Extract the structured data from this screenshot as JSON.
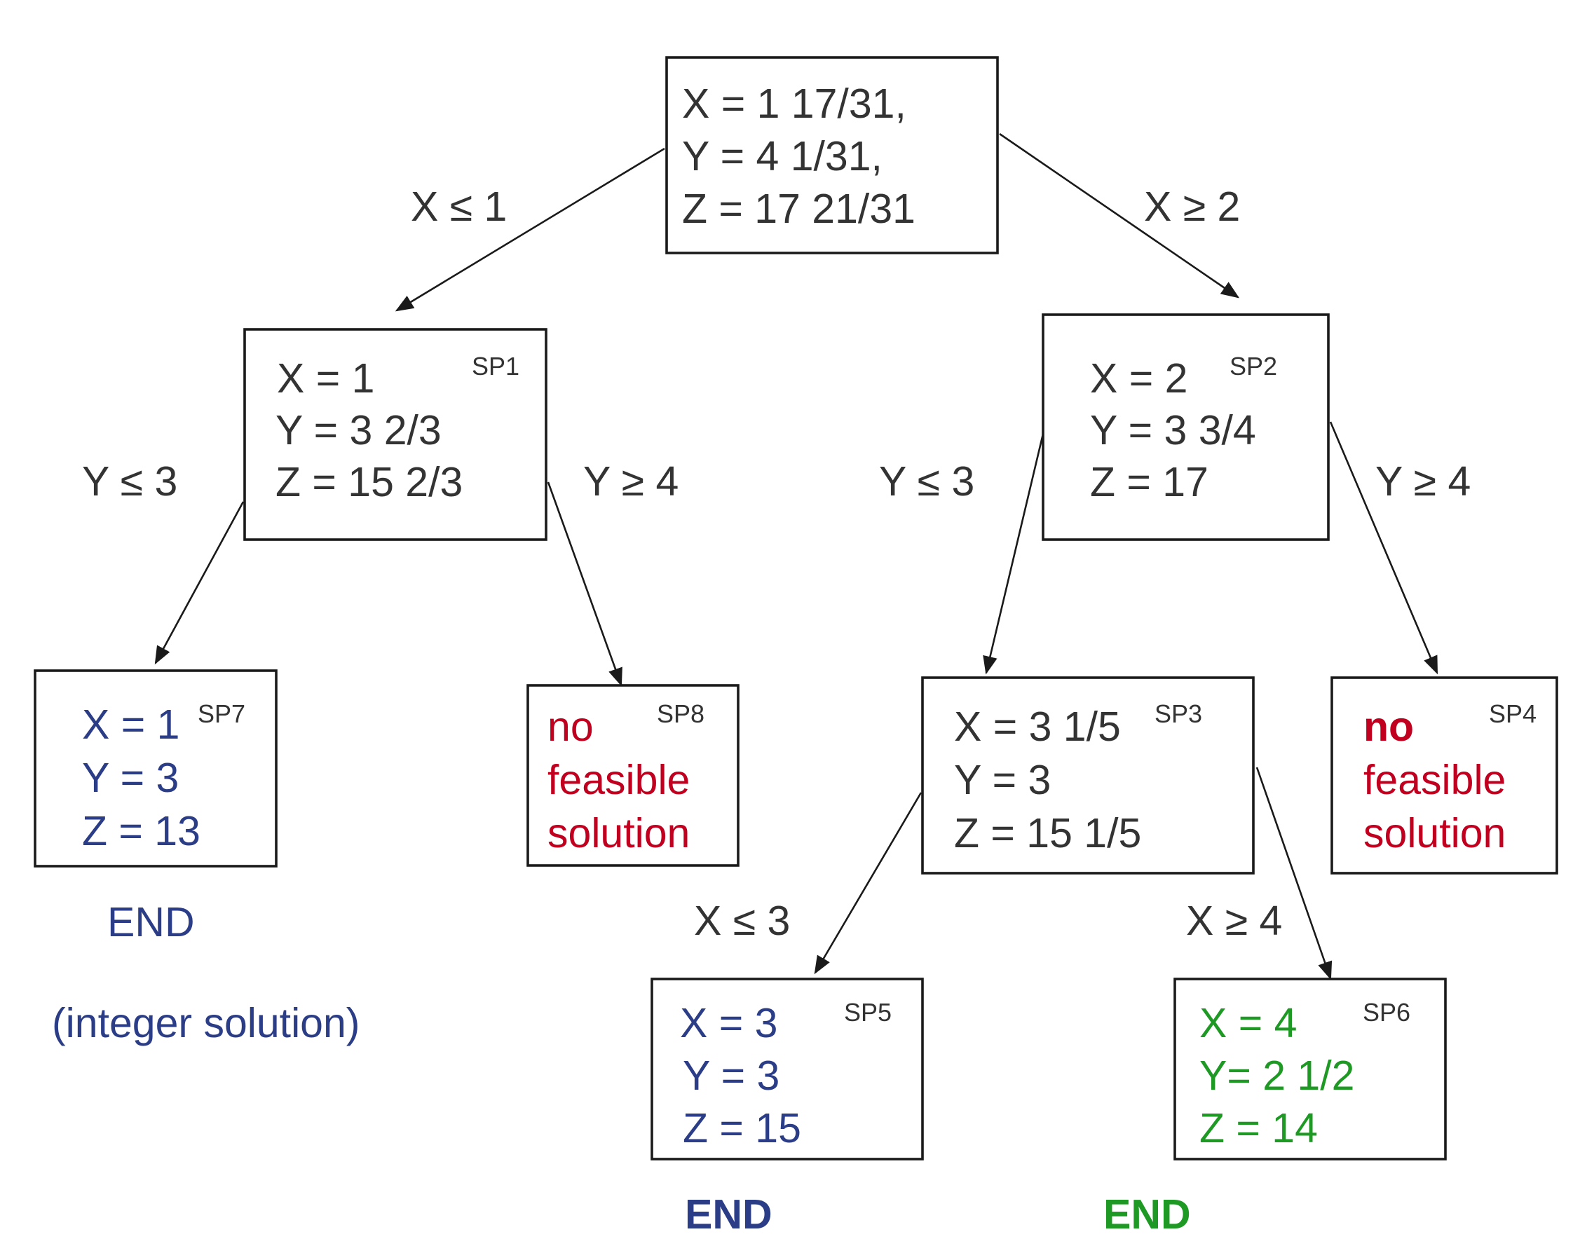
{
  "colors": {
    "ink": "#333333",
    "integer_blue": "#2b3d86",
    "infeasible_red": "#c0001e",
    "green": "#1e9a24"
  },
  "nodes": {
    "root": {
      "lines": [
        "X = 1 17/31,",
        "Y = 4 1/31,",
        "Z = 17 21/31"
      ]
    },
    "sp1": {
      "tag": "SP1",
      "lines": [
        "X = 1",
        "Y = 3 2/3",
        "Z = 15 2/3"
      ]
    },
    "sp2": {
      "tag": "SP2",
      "lines": [
        "X = 2",
        "Y = 3 3/4",
        "Z = 17"
      ]
    },
    "sp7": {
      "tag": "SP7",
      "lines": [
        "X = 1",
        "Y = 3",
        "Z = 13"
      ]
    },
    "sp8": {
      "tag": "SP8",
      "lines": [
        "no",
        "feasible",
        "solution"
      ]
    },
    "sp3": {
      "tag": "SP3",
      "lines": [
        "X = 3 1/5",
        "Y = 3",
        "Z = 15 1/5"
      ]
    },
    "sp4": {
      "tag": "SP4",
      "lines": [
        "no",
        "feasible",
        "solution"
      ]
    },
    "sp5": {
      "tag": "SP5",
      "lines": [
        "X = 3",
        "Y = 3",
        "Z = 15"
      ]
    },
    "sp6": {
      "tag": "SP6",
      "lines": [
        "X = 4",
        "Y= 2 1/2",
        "Z = 14"
      ]
    }
  },
  "branches": {
    "root_left": "X ≤ 1",
    "root_right": "X ≥ 2",
    "sp1_left": "Y ≤ 3",
    "sp1_right": "Y ≥ 4",
    "sp2_left": "Y ≤ 3",
    "sp2_right": "Y ≥ 4",
    "sp3_left": "X ≤ 3",
    "sp3_right": "X ≥ 4"
  },
  "notes": {
    "sp7_end": "END",
    "sp7_integer": "(integer solution)",
    "sp5_end": "END",
    "sp6_end": "END"
  }
}
